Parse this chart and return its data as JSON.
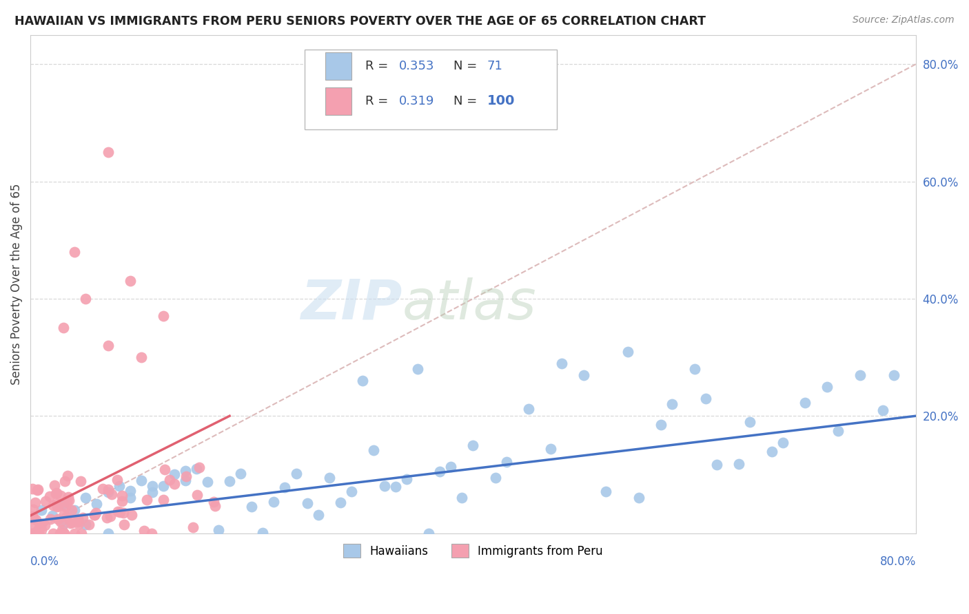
{
  "title": "HAWAIIAN VS IMMIGRANTS FROM PERU SENIORS POVERTY OVER THE AGE OF 65 CORRELATION CHART",
  "source": "Source: ZipAtlas.com",
  "ylabel": "Seniors Poverty Over the Age of 65",
  "xlim": [
    0.0,
    0.8
  ],
  "ylim": [
    0.0,
    0.85
  ],
  "legend_r_hawaiian": "0.353",
  "legend_n_hawaiian": "71",
  "legend_r_peru": "0.319",
  "legend_n_peru": "100",
  "hawaii_color": "#a8c8e8",
  "peru_color": "#f4a0b0",
  "hawaii_line_color": "#4472c4",
  "peru_line_color": "#e06070",
  "diagonal_color": "#ddbbbb",
  "background_color": "#ffffff",
  "grid_color": "#d8d8d8",
  "ytick_positions": [
    0.2,
    0.4,
    0.6,
    0.8
  ],
  "ytick_labels": [
    "20.0%",
    "40.0%",
    "60.0%",
    "80.0%"
  ]
}
